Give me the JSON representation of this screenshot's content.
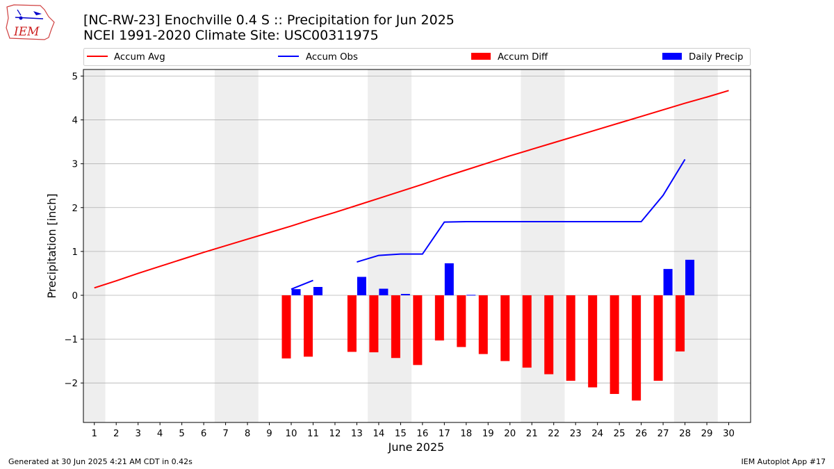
{
  "title_line1": "[NC-RW-23] Enochville 0.4 S :: Precipitation for Jun 2025",
  "title_line2": "NCEI 1991-2020 Climate Site: USC00311975",
  "logo_text": "IEM",
  "footer_left": "Generated at 30 Jun 2025 4:21 AM CDT in 0.42s",
  "footer_right": "IEM Autoplot App #17",
  "colors": {
    "accum_avg": "#ff0000",
    "accum_obs": "#0000ff",
    "accum_diff": "#ff0000",
    "daily_precip": "#0000ff",
    "weekend_shade": "#eeeeee",
    "grid": "#b0b0b0"
  },
  "chart_data": {
    "type": "bar",
    "xlabel": "June 2025",
    "ylabel": "Precipitation [inch]",
    "xlim": [
      0.5,
      31
    ],
    "ylim": [
      -2.9,
      5.15
    ],
    "x_ticks": [
      1,
      2,
      3,
      4,
      5,
      6,
      7,
      8,
      9,
      10,
      11,
      12,
      13,
      14,
      15,
      16,
      17,
      18,
      19,
      20,
      21,
      22,
      23,
      24,
      25,
      26,
      27,
      28,
      29,
      30
    ],
    "y_ticks": [
      -2,
      -1,
      0,
      1,
      2,
      3,
      4,
      5
    ],
    "grid": "horizontal",
    "legend_position": "top",
    "weekend_shading": [
      [
        0.5,
        1.5
      ],
      [
        6.5,
        8.5
      ],
      [
        13.5,
        15.5
      ],
      [
        20.5,
        22.5
      ],
      [
        27.5,
        29.5
      ]
    ],
    "series": [
      {
        "name": "Accum Avg",
        "kind": "line",
        "x": [
          1,
          2,
          3,
          4,
          5,
          6,
          7,
          8,
          9,
          10,
          11,
          12,
          13,
          14,
          15,
          16,
          17,
          18,
          19,
          20,
          21,
          22,
          23,
          24,
          25,
          26,
          27,
          28,
          29,
          30
        ],
        "values": [
          0.17,
          0.33,
          0.5,
          0.66,
          0.82,
          0.98,
          1.13,
          1.28,
          1.43,
          1.58,
          1.74,
          1.89,
          2.05,
          2.21,
          2.37,
          2.53,
          2.7,
          2.86,
          3.02,
          3.18,
          3.33,
          3.48,
          3.63,
          3.78,
          3.93,
          4.08,
          4.23,
          4.38,
          4.52,
          4.67
        ]
      },
      {
        "name": "Accum Obs",
        "kind": "line",
        "segments": [
          {
            "x": [
              10,
              11
            ],
            "values": [
              0.14,
              0.34
            ]
          },
          {
            "x": [
              13,
              14,
              15,
              16,
              17,
              18,
              19,
              20,
              21,
              22,
              23,
              24,
              25,
              26,
              27,
              28
            ],
            "values": [
              0.76,
              0.91,
              0.94,
              0.94,
              1.67,
              1.68,
              1.68,
              1.68,
              1.68,
              1.68,
              1.68,
              1.68,
              1.68,
              1.68,
              2.28,
              3.1
            ]
          }
        ]
      },
      {
        "name": "Accum Diff",
        "kind": "bar",
        "x": [
          10,
          11,
          13,
          14,
          15,
          16,
          17,
          18,
          19,
          20,
          21,
          22,
          23,
          24,
          25,
          26,
          27,
          28
        ],
        "values": [
          -1.44,
          -1.4,
          -1.29,
          -1.3,
          -1.43,
          -1.59,
          -1.03,
          -1.18,
          -1.34,
          -1.5,
          -1.65,
          -1.8,
          -1.95,
          -2.1,
          -2.25,
          -2.4,
          -1.95,
          -1.28
        ]
      },
      {
        "name": "Daily Precip",
        "kind": "bar",
        "x": [
          10,
          11,
          13,
          14,
          15,
          17,
          18,
          27,
          28
        ],
        "values": [
          0.14,
          0.19,
          0.42,
          0.15,
          0.03,
          0.73,
          0.01,
          0.6,
          0.81
        ]
      }
    ]
  }
}
